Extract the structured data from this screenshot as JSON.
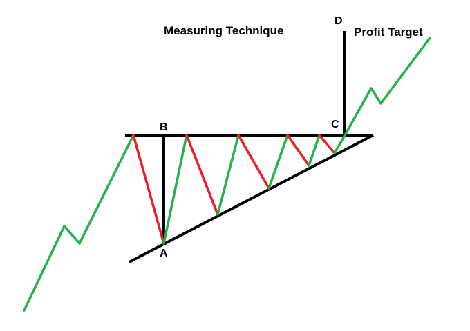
{
  "title": "Measuring Technique",
  "target_label": "Profit Target",
  "points": {
    "a": "A",
    "b": "B",
    "c": "C",
    "d": "D"
  },
  "colors": {
    "up": "#22b14c",
    "down": "#ed1c24",
    "line": "#000000"
  }
}
